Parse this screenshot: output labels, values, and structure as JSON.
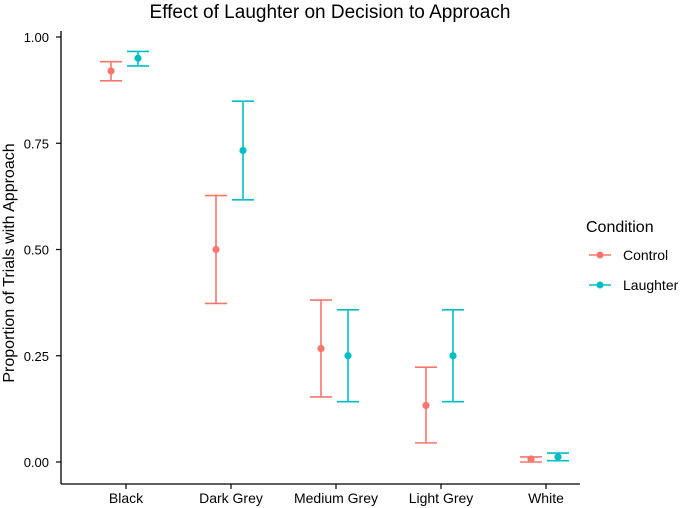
{
  "chart_data": {
    "type": "errorbar",
    "title": "Effect of Laughter on Decision to Approach",
    "xlabel": "",
    "ylabel": "Proportion of Trials with Approach",
    "categories": [
      "Black",
      "Dark Grey",
      "Medium Grey",
      "Light Grey",
      "White"
    ],
    "ylim": [
      0.0,
      1.0
    ],
    "yticks": [
      0.0,
      0.25,
      0.5,
      0.75,
      1.0
    ],
    "ytick_labels": [
      "0.00",
      "0.25",
      "0.50",
      "0.75",
      "1.00"
    ],
    "grid": false,
    "legend": {
      "title": "Condition",
      "position": "right"
    },
    "series": [
      {
        "name": "Control",
        "color": "#F8766D",
        "values": [
          0.92,
          0.5,
          0.267,
          0.133,
          0.007
        ],
        "lower": [
          0.897,
          0.373,
          0.153,
          0.045,
          0.0
        ],
        "upper": [
          0.942,
          0.627,
          0.381,
          0.223,
          0.012
        ]
      },
      {
        "name": "Laughter",
        "color": "#00BFC4",
        "values": [
          0.95,
          0.733,
          0.25,
          0.25,
          0.012
        ],
        "lower": [
          0.932,
          0.617,
          0.142,
          0.142,
          0.003
        ],
        "upper": [
          0.966,
          0.849,
          0.358,
          0.358,
          0.021
        ]
      }
    ]
  }
}
